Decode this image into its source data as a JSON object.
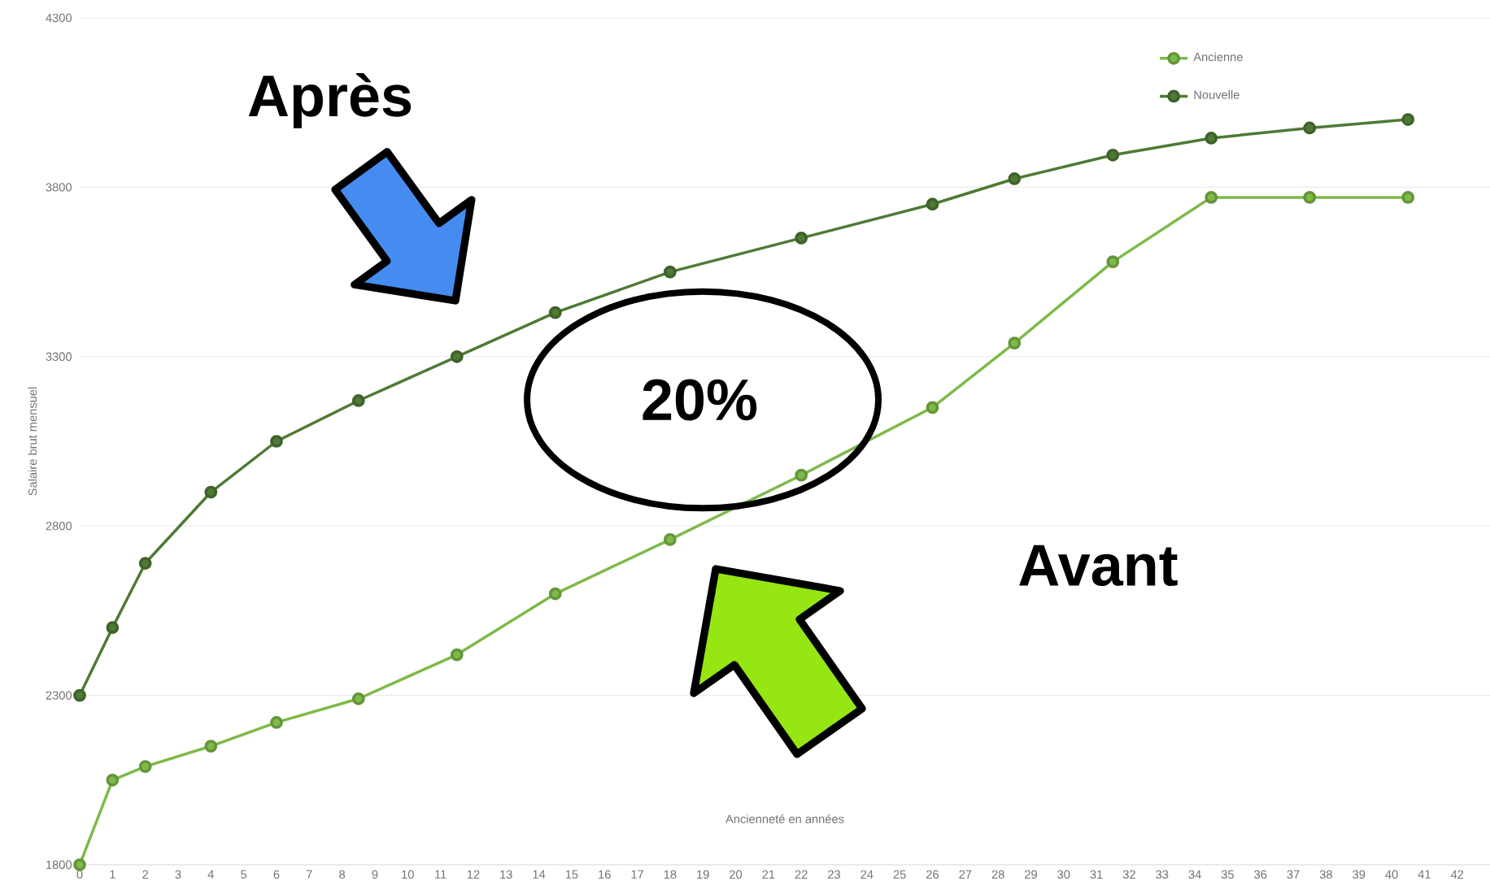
{
  "chart_data": {
    "type": "line",
    "xlabel": "Ancienneté en années",
    "ylabel": "Salaire brut mensuel",
    "x": [
      0,
      1,
      2,
      4,
      6,
      8.5,
      11.5,
      14.5,
      18,
      22,
      26,
      28.5,
      31.5,
      34.5,
      37.5,
      40.5
    ],
    "series": [
      {
        "name": "Ancienne",
        "color": "#7dba48",
        "values": [
          1800,
          2050,
          2090,
          2150,
          2220,
          2290,
          2420,
          2600,
          2760,
          2950,
          3150,
          3340,
          3580,
          3770,
          3770,
          3770
        ]
      },
      {
        "name": "Nouvelle",
        "color": "#4e7a35",
        "values": [
          2300,
          2500,
          2690,
          2900,
          3050,
          3170,
          3300,
          3430,
          3550,
          3650,
          3750,
          3825,
          3895,
          3945,
          3975,
          4000
        ]
      }
    ],
    "xlim": [
      0,
      43
    ],
    "xticks": [
      0,
      1,
      2,
      3,
      4,
      5,
      6,
      7,
      8,
      9,
      10,
      11,
      12,
      13,
      14,
      15,
      16,
      17,
      18,
      19,
      20,
      21,
      22,
      23,
      24,
      25,
      26,
      27,
      28,
      29,
      30,
      31,
      32,
      33,
      34,
      35,
      36,
      37,
      38,
      39,
      40,
      41,
      42
    ],
    "ylim": [
      1800,
      4300
    ],
    "yticks": [
      1800,
      2300,
      2800,
      3300,
      3800,
      4300
    ],
    "grid": "y",
    "legend": "top right",
    "marker": "circle",
    "line_style": "solid",
    "annotations": [
      "Après",
      "20%",
      "Avant"
    ]
  }
}
